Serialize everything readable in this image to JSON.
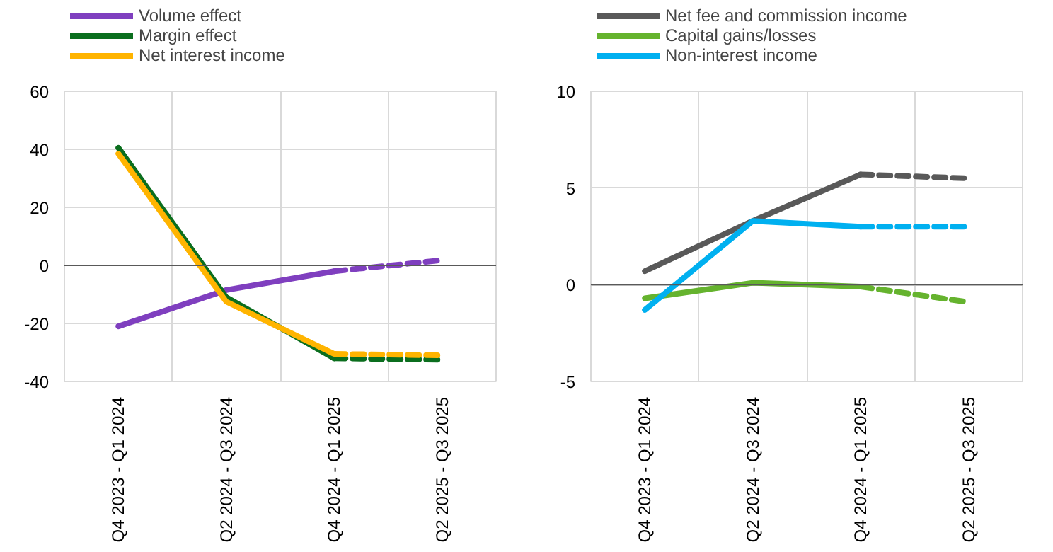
{
  "chart_data": [
    {
      "type": "line",
      "categories": [
        "Q4 2023 - Q1 2024",
        "Q2 2024 - Q3 2024",
        "Q4 2024 - Q1 2025",
        "Q2 2025 - Q3 2025"
      ],
      "ylim": [
        -40,
        60
      ],
      "yticks": [
        -40,
        -20,
        0,
        20,
        40,
        60
      ],
      "grid": true,
      "legend": "top left",
      "ref_lines": [
        {
          "axis": "y",
          "value": 0,
          "color": "#595959"
        }
      ],
      "series": [
        {
          "name": "Volume effect",
          "color": "#7f3fbf",
          "line_style": "solid",
          "values": [
            -21,
            -8.5,
            -2,
            null
          ]
        },
        {
          "name": "Margin effect",
          "color": "#0b6e1e",
          "line_style": "solid",
          "values": [
            40.5,
            -11,
            -32,
            null
          ]
        },
        {
          "name": "Net interest income",
          "color": "#ffb400",
          "line_style": "solid",
          "values": [
            38.5,
            -12.5,
            -30.5,
            null
          ]
        },
        {
          "color": "#7f3fbf",
          "line_style": "dashed",
          "values": [
            null,
            null,
            -2,
            1.8
          ]
        },
        {
          "color": "#0b6e1e",
          "line_style": "dashed",
          "values": [
            null,
            null,
            -32,
            -32.5
          ]
        },
        {
          "color": "#ffb400",
          "line_style": "dashed",
          "values": [
            null,
            null,
            -30.5,
            -31
          ]
        }
      ]
    },
    {
      "type": "line",
      "categories": [
        "Q4 2023 - Q1 2024",
        "Q2 2024 - Q3 2024",
        "Q4 2024 - Q1 2025",
        "Q2 2025 - Q3 2025"
      ],
      "ylim": [
        -5,
        10
      ],
      "yticks": [
        -5,
        0,
        5,
        10
      ],
      "grid": true,
      "legend": "top left",
      "ref_lines": [
        {
          "axis": "y",
          "value": 0,
          "color": "#595959"
        }
      ],
      "series": [
        {
          "name": "Net fee and commission income",
          "color": "#595959",
          "line_style": "solid",
          "values": [
            0.7,
            3.3,
            5.7,
            null
          ]
        },
        {
          "name": "Capital gains/losses",
          "color": "#65b32e",
          "line_style": "solid",
          "values": [
            -0.7,
            0.1,
            -0.1,
            null
          ]
        },
        {
          "name": "Non-interest income",
          "color": "#00b0f0",
          "line_style": "solid",
          "values": [
            -1.3,
            3.3,
            3.0,
            null
          ]
        },
        {
          "color": "#595959",
          "line_style": "dashed",
          "values": [
            null,
            null,
            5.7,
            5.5
          ]
        },
        {
          "color": "#65b32e",
          "line_style": "dashed",
          "values": [
            null,
            null,
            -0.1,
            -0.9
          ]
        },
        {
          "color": "#00b0f0",
          "line_style": "dashed",
          "values": [
            null,
            null,
            3.0,
            3.0
          ]
        }
      ]
    }
  ]
}
